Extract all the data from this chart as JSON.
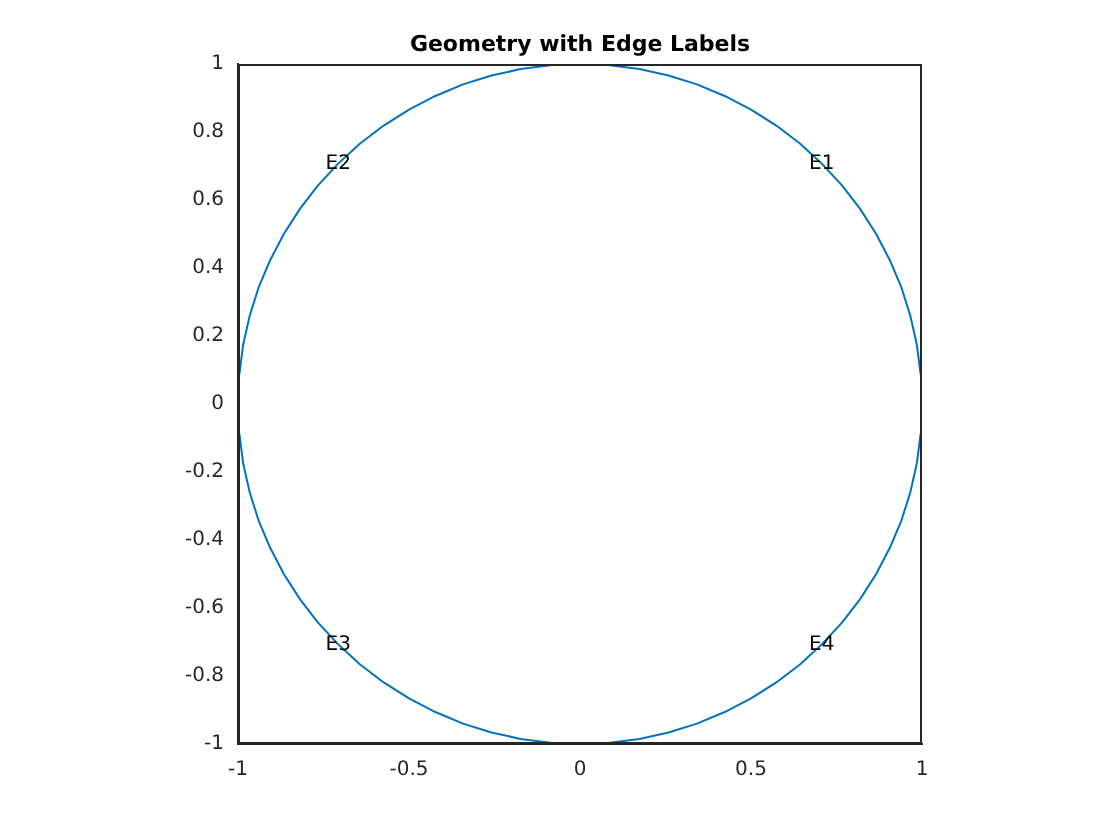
{
  "chart_data": {
    "type": "line",
    "title": "Geometry with Edge Labels",
    "series": [
      {
        "name": "E1",
        "color": "#0072bd",
        "x": [
          0.087,
          0.174,
          0.259,
          0.342,
          0.423,
          0.5,
          0.574,
          0.643,
          0.707,
          0.766,
          0.819,
          0.866,
          0.906,
          0.94,
          0.966,
          0.985,
          0.996
        ],
        "values": [
          0.996,
          0.985,
          0.966,
          0.94,
          0.906,
          0.866,
          0.819,
          0.766,
          0.707,
          0.643,
          0.574,
          0.5,
          0.423,
          0.342,
          0.259,
          0.174,
          0.087
        ]
      },
      {
        "name": "E2",
        "color": "#0072bd",
        "x": [
          -0.996,
          -0.985,
          -0.966,
          -0.94,
          -0.906,
          -0.866,
          -0.819,
          -0.766,
          -0.707,
          -0.643,
          -0.574,
          -0.5,
          -0.423,
          -0.342,
          -0.259,
          -0.174,
          -0.087
        ],
        "values": [
          0.087,
          0.174,
          0.259,
          0.342,
          0.423,
          0.5,
          0.574,
          0.643,
          0.707,
          0.766,
          0.819,
          0.866,
          0.906,
          0.94,
          0.966,
          0.985,
          0.996
        ]
      },
      {
        "name": "E3",
        "color": "#0072bd",
        "x": [
          -0.996,
          -0.985,
          -0.966,
          -0.94,
          -0.906,
          -0.866,
          -0.819,
          -0.766,
          -0.707,
          -0.643,
          -0.574,
          -0.5,
          -0.423,
          -0.342,
          -0.259,
          -0.174,
          -0.087
        ],
        "values": [
          -0.087,
          -0.174,
          -0.259,
          -0.342,
          -0.423,
          -0.5,
          -0.574,
          -0.643,
          -0.707,
          -0.766,
          -0.819,
          -0.866,
          -0.906,
          -0.94,
          -0.966,
          -0.985,
          -0.996
        ]
      },
      {
        "name": "E4",
        "color": "#0072bd",
        "x": [
          0.087,
          0.174,
          0.259,
          0.342,
          0.423,
          0.5,
          0.574,
          0.643,
          0.707,
          0.766,
          0.819,
          0.866,
          0.906,
          0.94,
          0.966,
          0.985,
          0.996
        ],
        "values": [
          -0.996,
          -0.985,
          -0.966,
          -0.94,
          -0.906,
          -0.866,
          -0.819,
          -0.766,
          -0.707,
          -0.643,
          -0.574,
          -0.5,
          -0.423,
          -0.342,
          -0.259,
          -0.174,
          -0.087
        ]
      }
    ],
    "xlim": [
      -1,
      1
    ],
    "xticks": [
      -1,
      -0.5,
      0,
      0.5,
      1
    ],
    "ylim": [
      -1,
      1
    ],
    "yticks": [
      -1,
      -0.8,
      -0.6,
      -0.4,
      -0.2,
      0,
      0.2,
      0.4,
      0.6,
      0.8,
      1
    ],
    "grid": false,
    "legend": false,
    "marker": "none",
    "line_style": "solid"
  }
}
